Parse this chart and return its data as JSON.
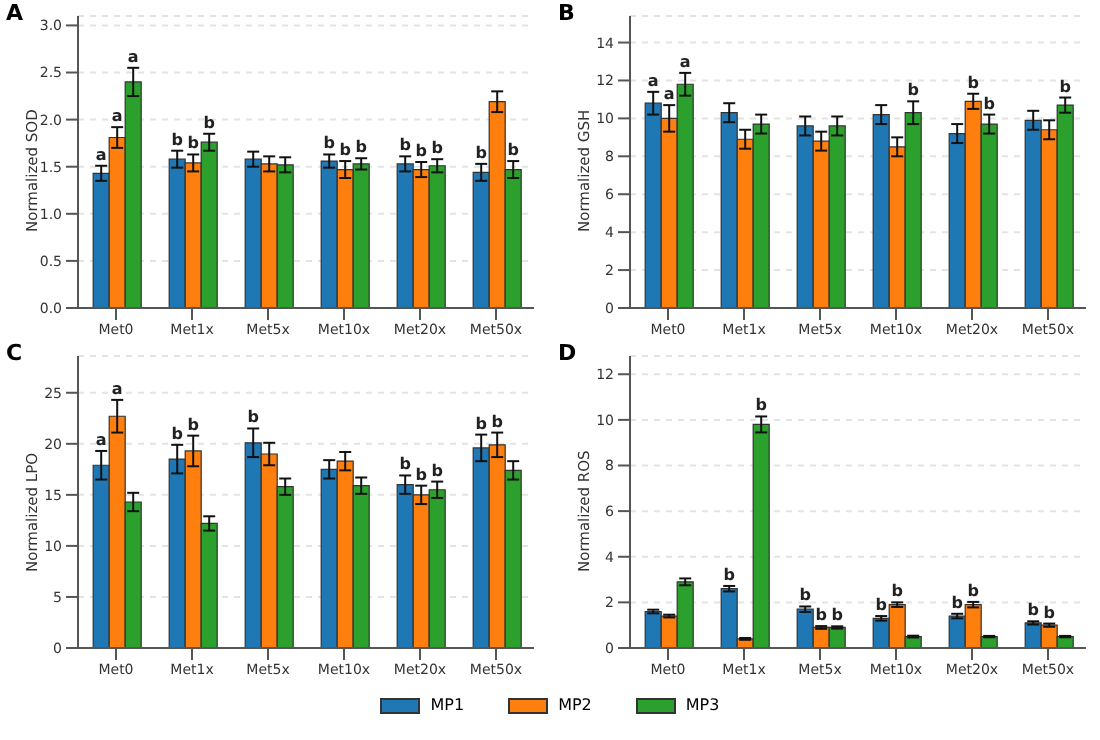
{
  "chart_data": [
    {
      "type": "bar",
      "title": "A",
      "ylabel": "Normalized SOD",
      "categories": [
        "Met0",
        "Met1x",
        "Met5x",
        "Met10x",
        "Met20x",
        "Met50x"
      ],
      "ylim": [
        0,
        3.1
      ],
      "yticks": [
        {
          "value": 0,
          "label": "0.0"
        },
        0.5,
        {
          "value": 1,
          "label": "1.0"
        },
        1.5,
        {
          "value": 2,
          "label": "2.0"
        },
        2.5,
        {
          "value": 3,
          "label": "3.0"
        }
      ],
      "grid": "y",
      "legend": "bottom",
      "series": [
        {
          "name": "MP1",
          "color": "#1f77b4",
          "values": [
            1.43,
            1.58,
            1.58,
            1.56,
            1.53,
            1.44
          ],
          "errors": [
            0.08,
            0.09,
            0.08,
            0.07,
            0.08,
            0.09
          ],
          "value_labels": [
            "a",
            "b",
            null,
            "b",
            "b",
            "b"
          ]
        },
        {
          "name": "MP2",
          "color": "#ff7f0e",
          "values": [
            1.81,
            1.54,
            1.53,
            1.47,
            1.47,
            2.19
          ],
          "errors": [
            0.11,
            0.09,
            0.08,
            0.09,
            0.08,
            0.11
          ],
          "value_labels": [
            "a",
            "b",
            null,
            "b",
            "b",
            null
          ]
        },
        {
          "name": "MP3",
          "color": "#2ca02c",
          "values": [
            2.4,
            1.76,
            1.52,
            1.53,
            1.51,
            1.47
          ],
          "errors": [
            0.15,
            0.09,
            0.08,
            0.06,
            0.07,
            0.09
          ],
          "value_labels": [
            "a",
            "b",
            null,
            "b",
            "b",
            "b"
          ]
        }
      ]
    },
    {
      "type": "bar",
      "title": "B",
      "ylabel": "Normalized GSH",
      "categories": [
        "Met0",
        "Met1x",
        "Met5x",
        "Met10x",
        "Met20x",
        "Met50x"
      ],
      "ylim": [
        0,
        15.4
      ],
      "yticks": [
        0,
        2,
        4,
        6,
        8,
        10,
        12,
        14
      ],
      "grid": "y",
      "series": [
        {
          "color": "#1f77b4",
          "values": [
            10.8,
            10.3,
            9.6,
            10.2,
            9.2,
            9.9
          ],
          "errors": [
            0.6,
            0.5,
            0.5,
            0.5,
            0.5,
            0.5
          ],
          "value_labels": [
            "a",
            null,
            null,
            null,
            null,
            null
          ]
        },
        {
          "color": "#ff7f0e",
          "values": [
            10.0,
            8.9,
            8.8,
            8.5,
            10.9,
            9.4
          ],
          "errors": [
            0.7,
            0.5,
            0.5,
            0.5,
            0.4,
            0.5
          ],
          "value_labels": [
            "a",
            null,
            null,
            null,
            "b",
            null
          ]
        },
        {
          "color": "#2ca02c",
          "values": [
            11.8,
            9.7,
            9.6,
            10.3,
            9.7,
            10.7
          ],
          "errors": [
            0.6,
            0.5,
            0.5,
            0.6,
            0.5,
            0.4
          ],
          "value_labels": [
            "a",
            null,
            null,
            "b",
            "b",
            "b"
          ]
        }
      ]
    },
    {
      "type": "bar",
      "title": "C",
      "ylabel": "Normalized LPO",
      "categories": [
        "Met0",
        "Met1x",
        "Met5x",
        "Met10x",
        "Met20x",
        "Met50x"
      ],
      "ylim": [
        0,
        28.6
      ],
      "yticks": [
        0,
        5,
        10,
        15,
        20,
        25
      ],
      "grid": "y",
      "series": [
        {
          "color": "#1f77b4",
          "values": [
            17.9,
            18.5,
            20.1,
            17.5,
            16.0,
            19.6
          ],
          "errors": [
            1.4,
            1.4,
            1.4,
            0.9,
            0.9,
            1.3
          ],
          "value_labels": [
            "a",
            "b",
            "b",
            null,
            "b",
            "b"
          ]
        },
        {
          "color": "#ff7f0e",
          "values": [
            22.7,
            19.3,
            19.0,
            18.3,
            15.0,
            19.9
          ],
          "errors": [
            1.6,
            1.5,
            1.1,
            0.9,
            0.9,
            1.2
          ],
          "value_labels": [
            "a",
            "b",
            null,
            null,
            "b",
            "b"
          ]
        },
        {
          "color": "#2ca02c",
          "values": [
            14.3,
            12.2,
            15.8,
            15.9,
            15.5,
            17.4
          ],
          "errors": [
            0.9,
            0.7,
            0.8,
            0.8,
            0.8,
            0.9
          ],
          "value_labels": [
            null,
            null,
            null,
            null,
            "b",
            null
          ]
        }
      ]
    },
    {
      "type": "bar",
      "title": "D",
      "ylabel": "Normalized ROS",
      "categories": [
        "Met0",
        "Met1x",
        "Met5x",
        "Met10x",
        "Met20x",
        "Met50x"
      ],
      "ylim": [
        0,
        12.8
      ],
      "yticks": [
        0,
        2,
        4,
        6,
        8,
        10,
        12
      ],
      "grid": "y",
      "series": [
        {
          "color": "#1f77b4",
          "values": [
            1.6,
            2.6,
            1.7,
            1.3,
            1.4,
            1.1
          ],
          "errors": [
            0.08,
            0.12,
            0.12,
            0.1,
            0.1,
            0.07
          ],
          "value_labels": [
            null,
            "b",
            "b",
            "b",
            "b",
            "b"
          ]
        },
        {
          "color": "#ff7f0e",
          "values": [
            1.4,
            0.4,
            0.9,
            1.9,
            1.9,
            1.0
          ],
          "errors": [
            0.06,
            0.04,
            0.06,
            0.1,
            0.12,
            0.07
          ],
          "value_labels": [
            null,
            null,
            "b",
            "b",
            "b",
            "b"
          ]
        },
        {
          "color": "#2ca02c",
          "values": [
            2.9,
            9.8,
            0.9,
            0.5,
            0.5,
            0.5
          ],
          "errors": [
            0.15,
            0.35,
            0.05,
            0.04,
            0.03,
            0.03
          ],
          "value_labels": [
            null,
            "b",
            "b",
            null,
            null,
            null
          ]
        }
      ]
    }
  ]
}
